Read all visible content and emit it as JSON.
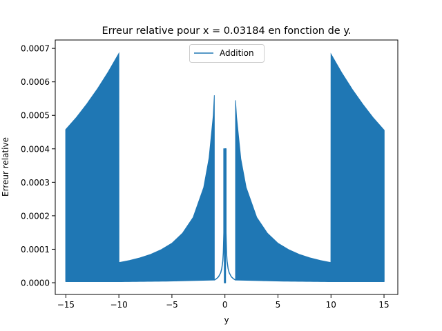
{
  "chart_data": {
    "type": "line",
    "title": "Erreur relative pour x = 0.03184 en fonction de y.",
    "xlabel": "y",
    "ylabel": "Erreur relative",
    "xlim": [
      -16,
      16.3
    ],
    "ylim": [
      -3.5e-05,
      0.000725
    ],
    "x_ticks": [
      -15,
      -10,
      -5,
      0,
      5,
      10,
      15
    ],
    "x_tick_labels": [
      "−15",
      "−10",
      "−5",
      "0",
      "5",
      "10",
      "15"
    ],
    "y_ticks": [
      0.0,
      0.0001,
      0.0002,
      0.0003,
      0.0004,
      0.0005,
      0.0006,
      0.0007
    ],
    "y_tick_labels": [
      "0.0000",
      "0.0001",
      "0.0002",
      "0.0003",
      "0.0004",
      "0.0005",
      "0.0006",
      "0.0007"
    ],
    "grid": false,
    "legend_position": "top-center",
    "series": [
      {
        "name": "Addition",
        "color": "#1f77b4",
        "envelope_upper": {
          "x": [
            -15,
            -14,
            -13,
            -12,
            -11,
            -10,
            -9.99,
            -9,
            -8,
            -7,
            -6,
            -5,
            -4,
            -3,
            -2,
            -1.5,
            -1.1,
            -1.0,
            1.0,
            1.1,
            1.5,
            2,
            3,
            4,
            5,
            6,
            7,
            8,
            9,
            9.99,
            10,
            11,
            12,
            13,
            14,
            15
          ],
          "y": [
            0.000458,
            0.000494,
            0.000535,
            0.00058,
            0.00063,
            0.000685,
            6.02e-05,
            6.65e-05,
            7.45e-05,
            8.48e-05,
            9.9e-05,
            0.000118,
            0.000148,
            0.000195,
            0.000285,
            0.000372,
            0.0005,
            0.00056,
            0.000545,
            0.000495,
            0.00037,
            0.000285,
            0.000195,
            0.000148,
            0.000118,
            9.9e-05,
            8.48e-05,
            7.45e-05,
            6.65e-05,
            6.02e-05,
            0.000683,
            0.000628,
            0.000578,
            0.000533,
            0.000492,
            0.000456
          ]
        },
        "envelope_lower": {
          "x": [
            -15,
            -10,
            -5,
            -1,
            1,
            5,
            10,
            15
          ],
          "y": [
            3e-06,
            3e-06,
            5e-06,
            8e-06,
            8e-06,
            5e-06,
            3e-06,
            3e-06
          ]
        },
        "center_line": {
          "x": [
            -1.0,
            -0.8,
            -0.6,
            -0.4,
            -0.3,
            -0.2,
            -0.15,
            -0.1,
            -0.1,
            -0.05,
            -0.05,
            0.05,
            0.05,
            0.1,
            0.1,
            0.15,
            0.2,
            0.3,
            0.4,
            0.6,
            0.8,
            1.0
          ],
          "y": [
            8e-06,
            1.2e-05,
            1.8e-05,
            3e-05,
            4.2e-05,
            6.5e-05,
            9e-05,
            0.00015,
            0.0004,
            0.0004,
            0.0,
            0.0,
            0.0004,
            0.0004,
            0.00015,
            9e-05,
            6.5e-05,
            4.2e-05,
            3e-05,
            1.8e-05,
            1.2e-05,
            8e-06
          ]
        }
      }
    ]
  }
}
